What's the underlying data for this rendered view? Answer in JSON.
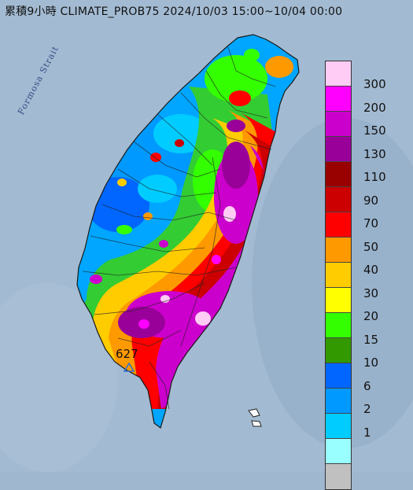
{
  "title": "累積9小時 CLIMATE_PROB75 2024/10/03 15:00~10/04 00:00",
  "strait_label": "Formosa Strait",
  "max_value": "627",
  "legend": {
    "levels": [
      "300",
      "200",
      "150",
      "130",
      "110",
      "90",
      "70",
      "50",
      "40",
      "30",
      "20",
      "15",
      "10",
      "6",
      "2",
      "1"
    ],
    "colors": [
      "#ffccf5",
      "#ff00ff",
      "#cc00cc",
      "#990099",
      "#990000",
      "#cc0000",
      "#ff0000",
      "#ff9900",
      "#ffcc00",
      "#ffff00",
      "#33ff00",
      "#339900",
      "#0066ff",
      "#0099ff",
      "#00ccff",
      "#99ffff",
      "#c0c0c0"
    ]
  },
  "palette": {
    "sea": "#9fb7cf",
    "outline": "#1a1a1a",
    "marker": "#6aa6ff"
  }
}
